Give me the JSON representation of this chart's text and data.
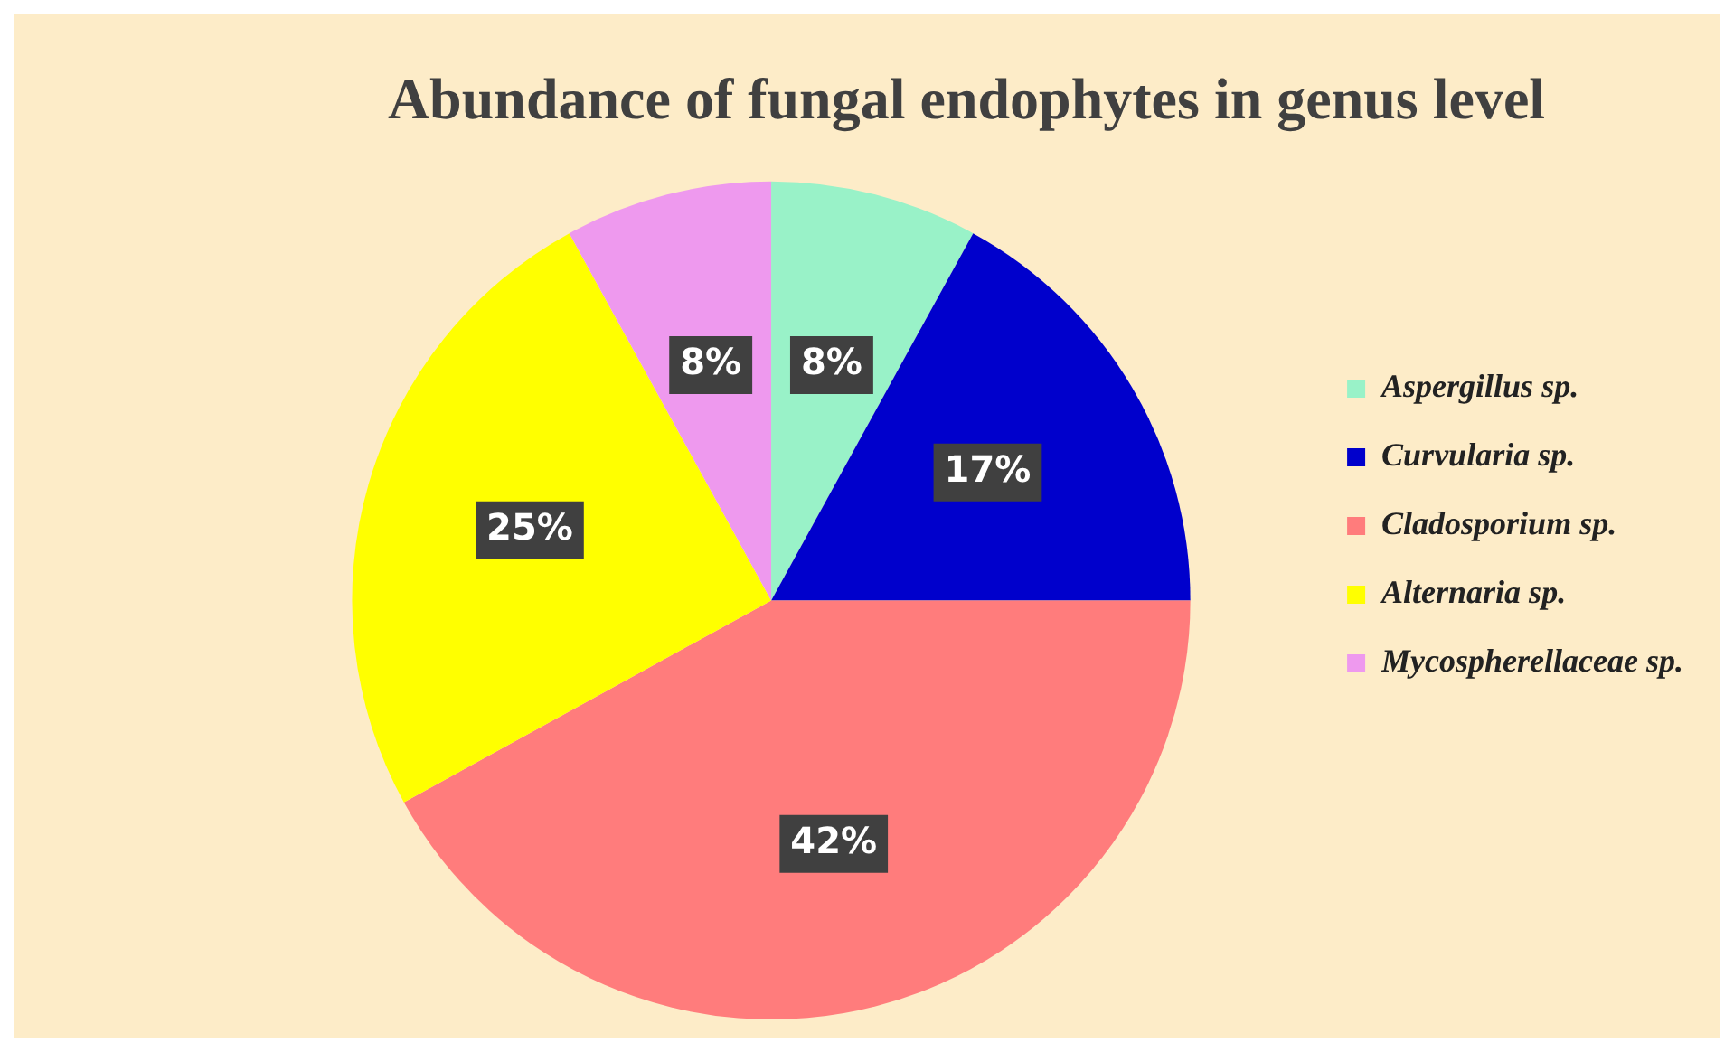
{
  "chart_data": {
    "type": "pie",
    "title": "Abundance of fungal endophytes in genus level",
    "categories": [
      "Aspergillus sp.",
      "Curvularia sp.",
      "Cladosporium sp.",
      "Alternaria sp.",
      "Mycospherellaceae sp."
    ],
    "values": [
      8,
      17,
      42,
      25,
      8
    ],
    "value_labels": [
      "8%",
      "17%",
      "42%",
      "25%",
      "8%"
    ],
    "colors": [
      "#99f2c8",
      "#0000cc",
      "#ff7c7c",
      "#ffff00",
      "#ee99ee"
    ],
    "legend": "right"
  }
}
